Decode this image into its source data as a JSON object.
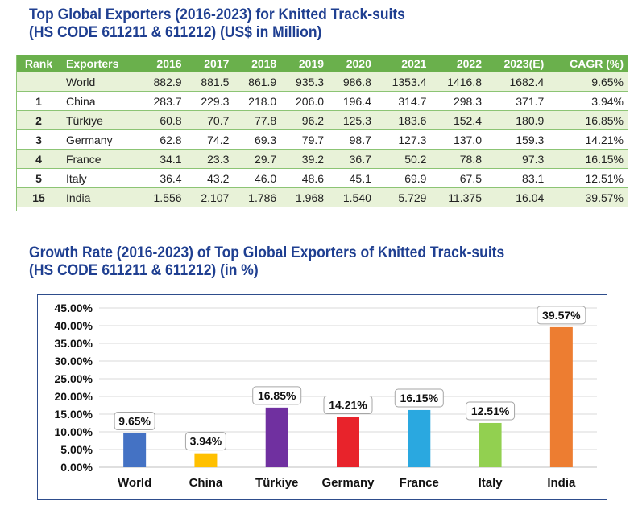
{
  "table_title_line1": "Top Global Exporters (2016-2023) for Knitted Track-suits",
  "table_title_line2": "(HS CODE 611211 & 611212) (US$ in Million)",
  "chart_title_line1": "Growth Rate (2016-2023) of Top Global Exporters of Knitted Track-suits",
  "chart_title_line2": "(HS CODE 611211 & 611212) (in %)",
  "table": {
    "headers": [
      "Rank",
      "Exporters",
      "2016",
      "2017",
      "2018",
      "2019",
      "2020",
      "2021",
      "2022",
      "2023(E)",
      "CAGR (%)"
    ],
    "rows": [
      [
        "",
        "World",
        "882.9",
        "881.5",
        "861.9",
        "935.3",
        "986.8",
        "1353.4",
        "1416.8",
        "1682.4",
        "9.65%"
      ],
      [
        "1",
        "China",
        "283.7",
        "229.3",
        "218.0",
        "206.0",
        "196.4",
        "314.7",
        "298.3",
        "371.7",
        "3.94%"
      ],
      [
        "2",
        "Türkiye",
        "60.8",
        "70.7",
        "77.8",
        "96.2",
        "125.3",
        "183.6",
        "152.4",
        "180.9",
        "16.85%"
      ],
      [
        "3",
        "Germany",
        "62.8",
        "74.2",
        "69.3",
        "79.7",
        "98.7",
        "127.3",
        "137.0",
        "159.3",
        "14.21%"
      ],
      [
        "4",
        "France",
        "34.1",
        "23.3",
        "29.7",
        "39.2",
        "36.7",
        "50.2",
        "78.8",
        "97.3",
        "16.15%"
      ],
      [
        "5",
        "Italy",
        "36.4",
        "43.2",
        "46.0",
        "48.6",
        "45.1",
        "69.9",
        "67.5",
        "83.1",
        "12.51%"
      ],
      [
        "15",
        "India",
        "1.556",
        "2.107",
        "1.786",
        "1.968",
        "1.540",
        "5.729",
        "11.375",
        "16.04",
        "39.57%"
      ]
    ]
  },
  "colors": {
    "title": "#1f3f91",
    "header_bg": "#6ab04c",
    "row_band": "#e8f2d8"
  },
  "chart_data": {
    "type": "bar",
    "title": "Growth Rate (2016-2023) of Top Global Exporters of Knitted Track-suits (HS CODE 611211 & 611212) (in %)",
    "categories": [
      "World",
      "China",
      "Türkiye",
      "Germany",
      "France",
      "Italy",
      "India"
    ],
    "values": [
      9.65,
      3.94,
      16.85,
      14.21,
      16.15,
      12.51,
      39.57
    ],
    "data_labels": [
      "9.65%",
      "3.94%",
      "16.85%",
      "14.21%",
      "16.15%",
      "12.51%",
      "39.57%"
    ],
    "colors": [
      "#4472c4",
      "#ffc000",
      "#7030a0",
      "#e8232b",
      "#2aa8e0",
      "#92d050",
      "#ed7d31"
    ],
    "ylim": [
      0,
      45
    ],
    "ytick_values": [
      0,
      5,
      10,
      15,
      20,
      25,
      30,
      35,
      40,
      45
    ],
    "ytick_labels": [
      "0.00%",
      "5.00%",
      "10.00%",
      "15.00%",
      "20.00%",
      "25.00%",
      "30.00%",
      "35.00%",
      "40.00%",
      "45.00%"
    ],
    "xlabel": "",
    "ylabel": "",
    "grid": true,
    "legend": "none"
  }
}
